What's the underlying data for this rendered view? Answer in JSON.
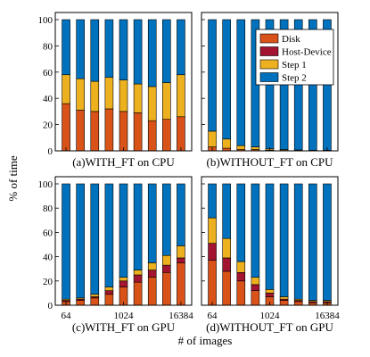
{
  "figure": {
    "ylabel": "% of time",
    "xlabel": "# of images",
    "legend_placement": "top-right of panel (b)"
  },
  "colors": {
    "Disk": "#D95319",
    "Host-Device": "#A2142F",
    "Step 1": "#EDB120",
    "Step 2": "#0072BD"
  },
  "chart_data": [
    {
      "type": "bar",
      "stacked": true,
      "caption": "(a)WITH_FT on CPU",
      "ylim": [
        0,
        100
      ],
      "yticks": [
        "0",
        "20",
        "40",
        "60",
        "80",
        "100"
      ],
      "xtick_labels": [],
      "series": [
        {
          "name": "Disk",
          "values": [
            36,
            31,
            30,
            32,
            30,
            29,
            23,
            24,
            26
          ]
        },
        {
          "name": "Host-Device",
          "values": [
            0,
            0,
            0,
            0,
            0,
            0,
            0,
            0,
            0
          ]
        },
        {
          "name": "Step 1",
          "values": [
            22,
            24,
            23,
            24,
            24,
            22,
            26,
            28,
            32
          ]
        },
        {
          "name": "Step 2",
          "values": [
            42,
            45,
            47,
            44,
            46,
            49,
            51,
            48,
            42
          ]
        }
      ]
    },
    {
      "type": "bar",
      "stacked": true,
      "caption": "(b)WITHOUT_FT on CPU",
      "ylim": [
        0,
        100
      ],
      "yticks": [],
      "xtick_labels": [],
      "series": [
        {
          "name": "Disk",
          "values": [
            3,
            2,
            1,
            1,
            0.5,
            0.3,
            0.2,
            0.1,
            0.1
          ]
        },
        {
          "name": "Host-Device",
          "values": [
            0,
            0,
            0,
            0,
            0,
            0,
            0,
            0,
            0
          ]
        },
        {
          "name": "Step 1",
          "values": [
            12,
            7,
            3,
            2,
            1,
            0.7,
            0.5,
            0.4,
            0.4
          ]
        },
        {
          "name": "Step 2",
          "values": [
            85,
            91,
            96,
            97,
            98.5,
            99,
            99.3,
            99.5,
            99.5
          ]
        }
      ]
    },
    {
      "type": "bar",
      "stacked": true,
      "caption": "(c)WITH_FT on GPU",
      "ylim": [
        0,
        100
      ],
      "yticks": [
        "0",
        "20",
        "40",
        "60",
        "80",
        "100"
      ],
      "xtick_labels": [
        "64",
        "1024",
        "16384"
      ],
      "series": [
        {
          "name": "Disk",
          "values": [
            3,
            4,
            6,
            9,
            15,
            19,
            23,
            27,
            35
          ]
        },
        {
          "name": "Host-Device",
          "values": [
            1,
            1,
            1,
            3,
            5,
            6,
            6,
            6,
            4
          ]
        },
        {
          "name": "Step 1",
          "values": [
            1,
            1,
            2,
            3,
            3,
            4,
            6,
            8,
            10
          ]
        },
        {
          "name": "Step 2",
          "values": [
            95,
            94,
            91,
            85,
            77,
            71,
            65,
            59,
            51
          ]
        }
      ]
    },
    {
      "type": "bar",
      "stacked": true,
      "caption": "(d)WITHOUT_FT on GPU",
      "ylim": [
        0,
        100
      ],
      "yticks": [],
      "xtick_labels": [
        "64",
        "1024",
        "16384"
      ],
      "series": [
        {
          "name": "Disk",
          "values": [
            37,
            28,
            20,
            12,
            7,
            4,
            3,
            2,
            2
          ]
        },
        {
          "name": "Host-Device",
          "values": [
            14,
            11,
            7,
            5,
            3,
            1,
            1,
            1,
            1
          ]
        },
        {
          "name": "Step 1",
          "values": [
            21,
            16,
            9,
            6,
            3,
            2,
            1,
            1,
            1
          ]
        },
        {
          "name": "Step 2",
          "values": [
            28,
            45,
            64,
            77,
            87,
            93,
            95,
            96,
            96
          ]
        }
      ]
    }
  ]
}
